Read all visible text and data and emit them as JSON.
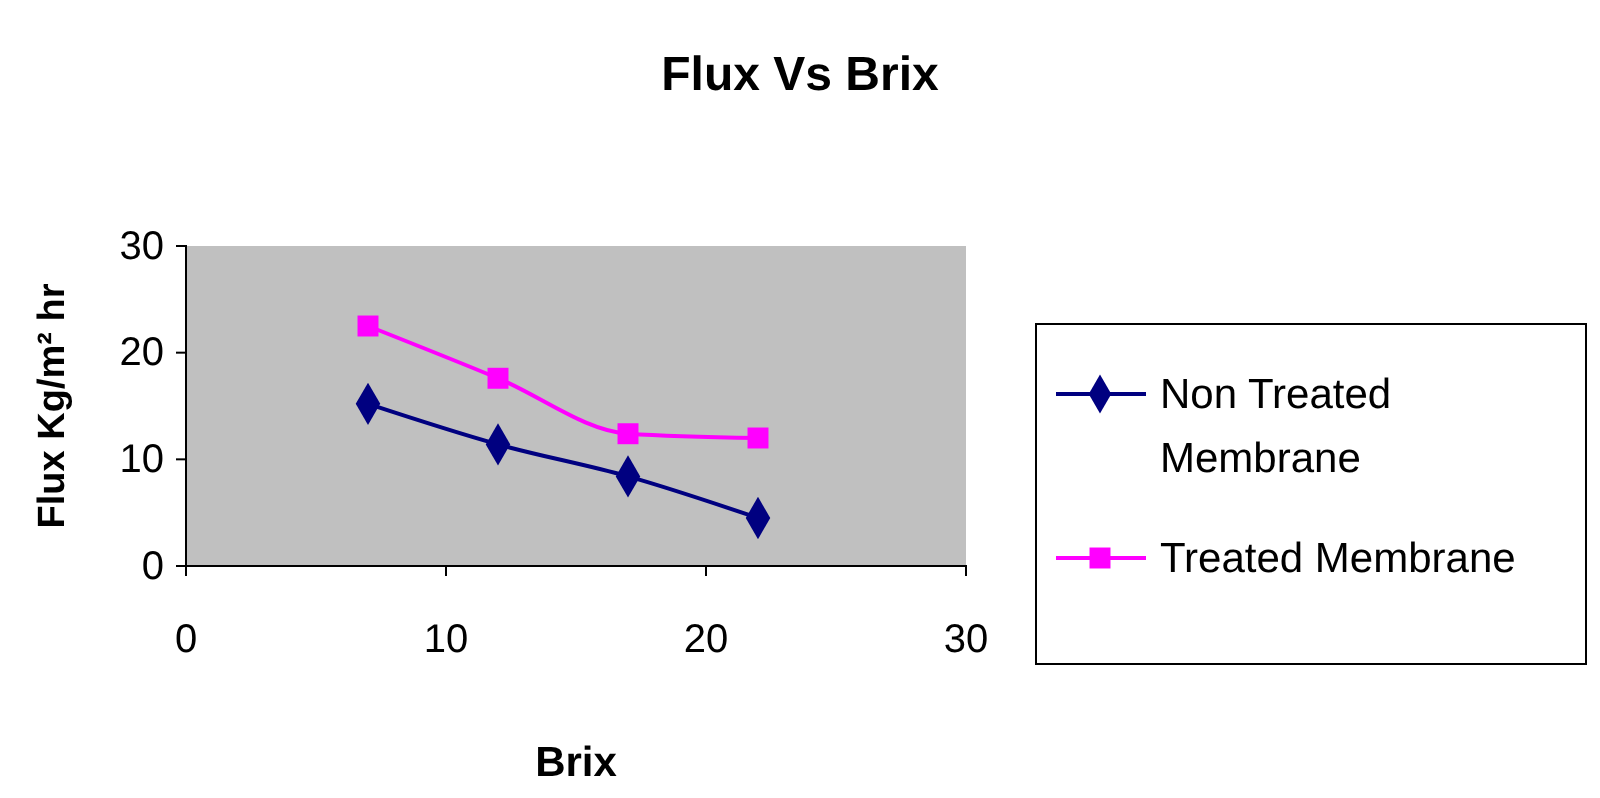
{
  "chart_data": {
    "type": "line",
    "title": "Flux Vs Brix",
    "xlabel": "Brix",
    "ylabel": "Flux Kg/m² hr",
    "xlim": [
      0,
      30
    ],
    "xticks": [
      0,
      10,
      20,
      30
    ],
    "ylim": [
      0,
      30
    ],
    "yticks": [
      0,
      10,
      20,
      30
    ],
    "grid": false,
    "legend": "right",
    "series": [
      {
        "name": "Non Treated Membrane",
        "color": "#000080",
        "marker": "diamond",
        "x": [
          7,
          12,
          17,
          22
        ],
        "values": [
          15.2,
          11.4,
          8.4,
          4.5
        ]
      },
      {
        "name": "Treated Membrane",
        "color": "#ff00ff",
        "marker": "square",
        "x": [
          7,
          12,
          17,
          22
        ],
        "values": [
          22.5,
          17.6,
          12.4,
          12.0
        ]
      }
    ]
  }
}
